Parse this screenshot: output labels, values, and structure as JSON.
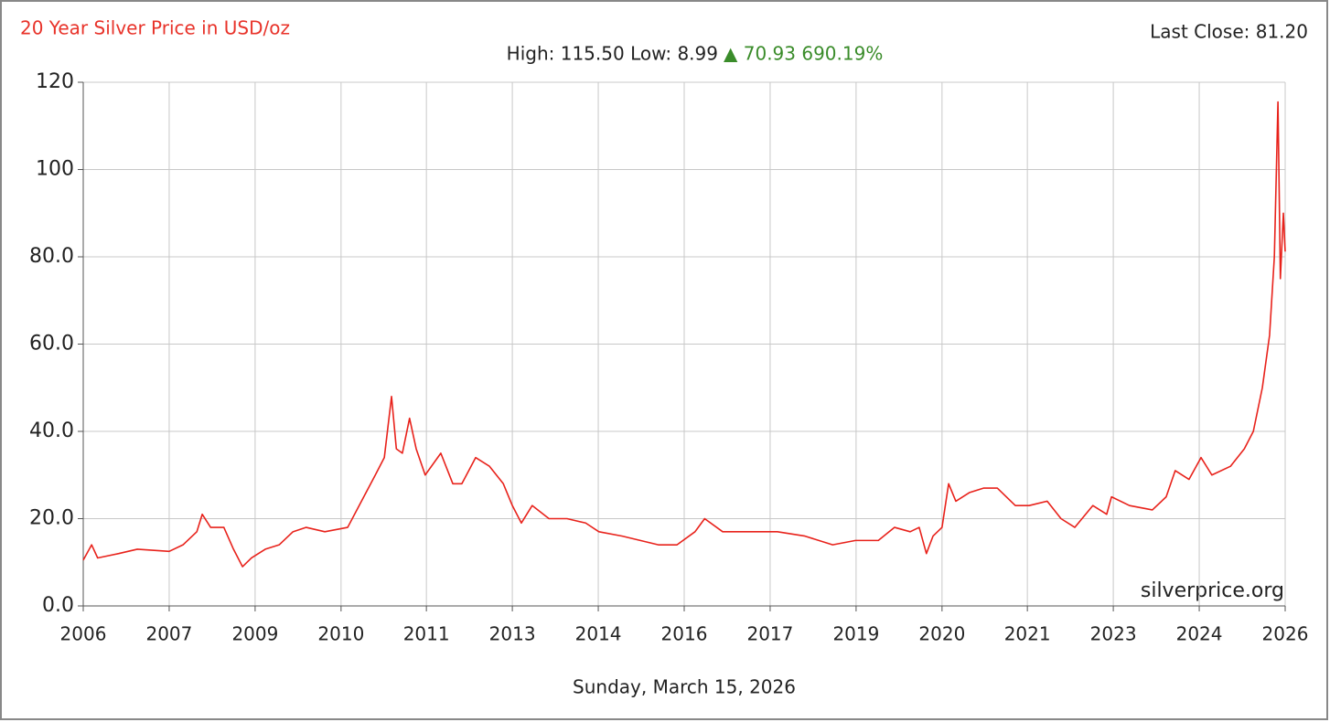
{
  "chart_data": {
    "type": "line",
    "title": "20 Year Silver Price in USD/oz",
    "last_close": "Last Close: 81.20",
    "summary": "High: 115.50 Low: 8.99",
    "change": "▲ 70.93 690.19%",
    "watermark": "silverprice.org",
    "date": "Sunday, March 15, 2026",
    "x": [
      2006.2,
      2006.34,
      2006.44,
      2006.79,
      2007.1,
      2007.63,
      2007.86,
      2008.09,
      2008.18,
      2008.32,
      2008.54,
      2008.7,
      2008.85,
      2009.0,
      2009.23,
      2009.46,
      2009.69,
      2009.91,
      2010.22,
      2010.6,
      2010.83,
      2011.06,
      2011.21,
      2011.33,
      2011.41,
      2011.51,
      2011.63,
      2011.74,
      2011.89,
      2012.15,
      2012.35,
      2012.5,
      2012.73,
      2012.96,
      2013.19,
      2013.34,
      2013.49,
      2013.67,
      2013.95,
      2014.25,
      2014.56,
      2014.78,
      2015.17,
      2015.47,
      2015.77,
      2016.08,
      2016.38,
      2016.54,
      2016.84,
      2017.3,
      2017.75,
      2018.21,
      2018.67,
      2019.05,
      2019.43,
      2019.7,
      2019.96,
      2020.11,
      2020.23,
      2020.34,
      2020.49,
      2020.6,
      2020.72,
      2020.95,
      2021.18,
      2021.41,
      2021.71,
      2021.94,
      2022.24,
      2022.47,
      2022.7,
      2023.0,
      2023.23,
      2023.31,
      2023.61,
      2023.99,
      2024.22,
      2024.37,
      2024.6,
      2024.8,
      2024.98,
      2025.29,
      2025.52,
      2025.67,
      2025.82,
      2025.94,
      2026.02,
      2026.08,
      2026.12,
      2026.17,
      2026.2
    ],
    "series": [
      {
        "name": "Silver",
        "color": "#e8221b",
        "values": [
          10.5,
          14,
          11,
          12,
          13,
          12.5,
          14,
          17,
          21,
          18,
          18,
          13,
          9,
          11,
          13,
          14,
          17,
          18,
          17,
          18,
          24,
          30,
          34,
          48,
          36,
          35,
          43,
          36,
          30,
          35,
          28,
          28,
          34,
          32,
          28,
          23,
          19,
          23,
          20,
          20,
          19,
          17,
          16,
          15,
          14,
          14,
          17,
          20,
          17,
          17,
          17,
          16,
          14,
          15,
          15,
          18,
          17,
          18,
          12,
          16,
          18,
          28,
          24,
          26,
          27,
          27,
          23,
          23,
          24,
          20,
          18,
          23,
          21,
          25,
          23,
          22,
          25,
          31,
          29,
          34,
          30,
          32,
          36,
          40,
          50,
          62,
          80,
          115.5,
          75,
          90,
          81.2
        ]
      }
    ],
    "xlim": [
      2006.2,
      2026.2
    ],
    "xticks": [
      {
        "value": 2006.2,
        "label": "2006"
      },
      {
        "value": 2007.63,
        "label": "2007"
      },
      {
        "value": 2009.06,
        "label": "2009"
      },
      {
        "value": 2010.49,
        "label": "2010"
      },
      {
        "value": 2011.91,
        "label": "2011"
      },
      {
        "value": 2013.34,
        "label": "2013"
      },
      {
        "value": 2014.77,
        "label": "2014"
      },
      {
        "value": 2016.2,
        "label": "2016"
      },
      {
        "value": 2017.63,
        "label": "2017"
      },
      {
        "value": 2019.06,
        "label": "2019"
      },
      {
        "value": 2020.49,
        "label": "2020"
      },
      {
        "value": 2021.91,
        "label": "2021"
      },
      {
        "value": 2023.34,
        "label": "2023"
      },
      {
        "value": 2024.77,
        "label": "2024"
      },
      {
        "value": 2026.2,
        "label": "2026"
      }
    ],
    "ylim": [
      0,
      120
    ],
    "yticks": [
      {
        "value": 0,
        "label": "0.0"
      },
      {
        "value": 20,
        "label": "20.0"
      },
      {
        "value": 40,
        "label": "40.0"
      },
      {
        "value": 60,
        "label": "60.0"
      },
      {
        "value": 80,
        "label": "80.0"
      },
      100,
      120
    ],
    "grid": true
  }
}
